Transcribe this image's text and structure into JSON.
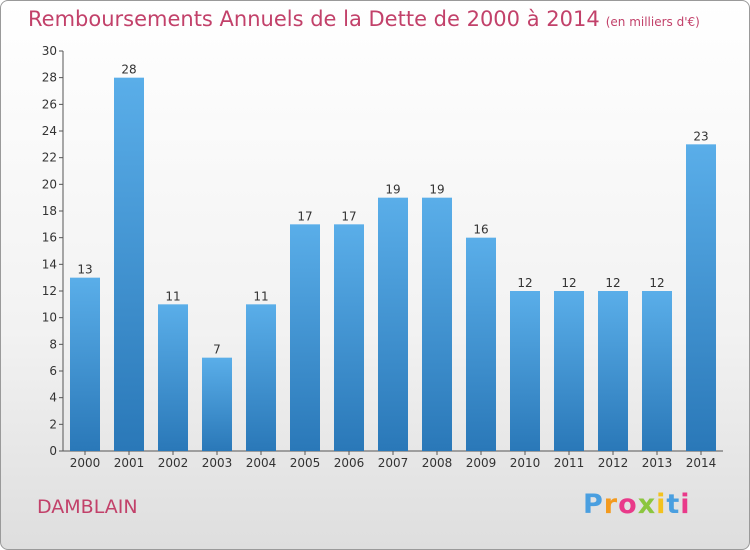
{
  "title": "Remboursements Annuels de la Dette de 2000 à 2014",
  "subtitle": "(en milliers d'€)",
  "location": "DAMBLAIN",
  "logo": {
    "letters": [
      "P",
      "r",
      "o",
      "x",
      "i",
      "t",
      "i"
    ],
    "colors": [
      "#4a9fe0",
      "#f39a1e",
      "#e93a8a",
      "#8cc63f",
      "#f3c21e",
      "#4a9fe0",
      "#e93a8a"
    ]
  },
  "colors": {
    "bar": "#5aaee9",
    "title": "#c2416a"
  },
  "chart_data": {
    "type": "bar",
    "categories": [
      "2000",
      "2001",
      "2002",
      "2003",
      "2004",
      "2005",
      "2006",
      "2007",
      "2008",
      "2009",
      "2010",
      "2011",
      "2012",
      "2013",
      "2014"
    ],
    "values": [
      13,
      28,
      11,
      7,
      11,
      17,
      17,
      19,
      19,
      16,
      12,
      12,
      12,
      12,
      23
    ],
    "title": "Remboursements Annuels de la Dette de 2000 à 2014",
    "subtitle": "(en milliers d'€)",
    "ylim": [
      0,
      30
    ],
    "yticks": [
      0,
      2,
      4,
      6,
      8,
      10,
      12,
      14,
      16,
      18,
      20,
      22,
      24,
      26,
      28,
      30
    ],
    "grid": false,
    "data_labels": true
  }
}
